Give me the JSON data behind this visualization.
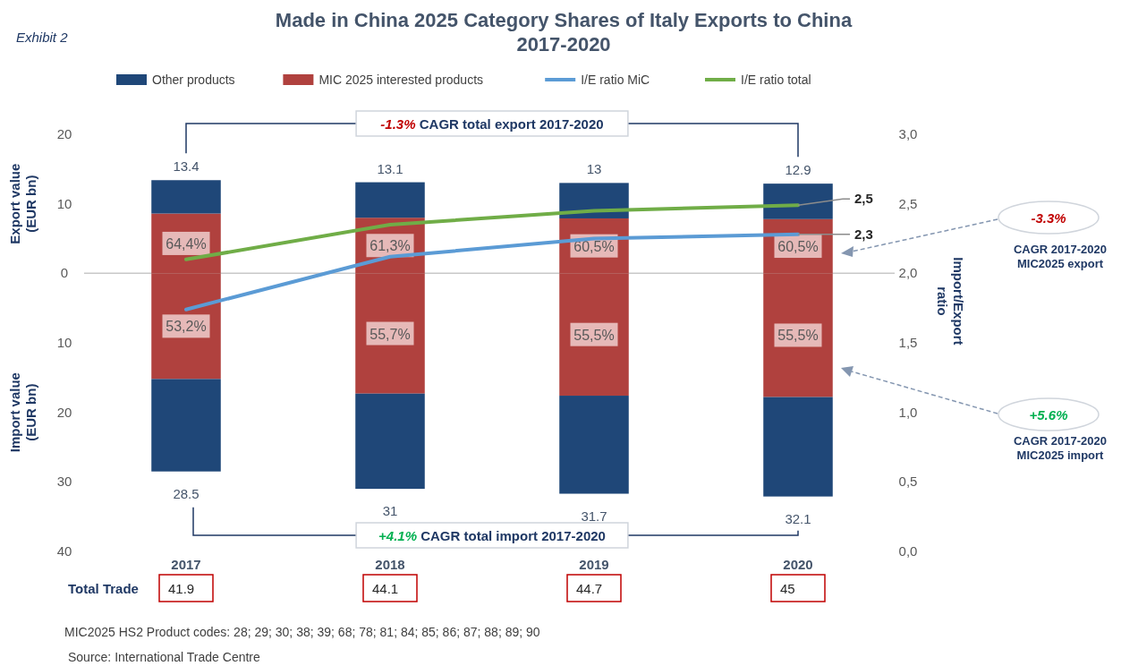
{
  "chart_data": {
    "type": "bar",
    "title": "Made in China 2025 Category Shares of Italy Exports to China 2017-2020",
    "ylabel": "Export value (EUR bn)",
    "y2label": "Import/Export ratio",
    "categories": [
      "2017",
      "2018",
      "2019",
      "2020"
    ],
    "stacked": true,
    "legend": "top",
    "grid": false,
    "ylim": [
      -40,
      20
    ],
    "yticks": [
      {
        "value": -40,
        "label": "40"
      },
      {
        "value": -30,
        "label": "30"
      },
      {
        "value": -20,
        "label": "20"
      },
      {
        "value": -10,
        "label": "10"
      },
      0,
      10,
      20
    ],
    "y2lim": [
      0,
      3
    ],
    "y2ticks": [
      {
        "value": 0,
        "label": "0,0"
      },
      {
        "value": 0.5,
        "label": "0,5"
      },
      {
        "value": 1,
        "label": "1,0"
      },
      {
        "value": 1.5,
        "label": "1,5"
      },
      {
        "value": 2,
        "label": "2,0"
      },
      {
        "value": 2.5,
        "label": "2,5"
      },
      {
        "value": 3,
        "label": "3,0"
      }
    ],
    "ref_lines": [
      {
        "axis": "y",
        "value": 0,
        "color": "#c8c8c8"
      }
    ],
    "series": [
      {
        "name": "MIC 2025 interested products",
        "color": "#b0413e",
        "values": [
          8.6,
          8.0,
          7.9,
          7.8
        ]
      },
      {
        "color": "#b0413e",
        "values": [
          -15.2,
          -17.3,
          -17.6,
          -17.8
        ]
      },
      {
        "name": "Other products",
        "color": "#1f4778",
        "values": [
          4.8,
          5.1,
          5.1,
          5.1
        ]
      },
      {
        "color": "#1f4778",
        "values": [
          -13.3,
          -13.7,
          -14.1,
          -14.3
        ]
      },
      {
        "name": "I/E ratio MiC",
        "type": "line",
        "axis": "y2",
        "color": "#5b9bd5",
        "values": [
          1.74,
          2.12,
          2.25,
          2.28
        ],
        "value_labels": [
          null,
          null,
          null,
          "2,3"
        ]
      },
      {
        "name": "I/E ratio total",
        "type": "line",
        "axis": "y2",
        "color": "#70ad47",
        "values": [
          2.1,
          2.35,
          2.45,
          2.49
        ],
        "value_labels": [
          null,
          null,
          null,
          "2,5"
        ]
      }
    ],
    "annotations": [
      "Exhibit 2",
      "Import value (EUR bn)",
      "-1.3% CAGR total export 2017-2020",
      "+4.1% CAGR total import 2017-2020",
      "-3.3%",
      "CAGR 2017-2020 MIC2025 export",
      "+5.6%",
      "CAGR 2017-2020 MIC2025 import",
      "Total Trade",
      "41.9",
      "44.1",
      "44.7",
      "45",
      "MIC2025 HS2 Product codes: 28; 29; 30; 38; 39; 68; 78; 81; 84; 85; 86; 87; 88; 89; 90",
      "Source: International Trade Centre",
      {
        "text": "28.5",
        "x": "2017",
        "y": -28.5
      },
      {
        "text": "31",
        "x": "2018",
        "y": -31
      },
      {
        "text": "31.7",
        "x": "2019",
        "y": -31.7
      },
      {
        "text": "32.1",
        "x": "2020",
        "y": -32.1
      },
      {
        "text": "13.4",
        "x": "2017",
        "y": 13.4
      },
      {
        "text": "13.1",
        "x": "2018",
        "y": 13.1
      },
      {
        "text": "13",
        "x": "2019",
        "y": 13
      },
      {
        "text": "12.9",
        "x": "2020",
        "y": 12.9
      },
      "64,4%",
      "61,3%",
      "60,5%",
      "60,5%",
      "53,2%",
      "55,7%",
      "55,5%",
      "55,5%"
    ]
  }
}
